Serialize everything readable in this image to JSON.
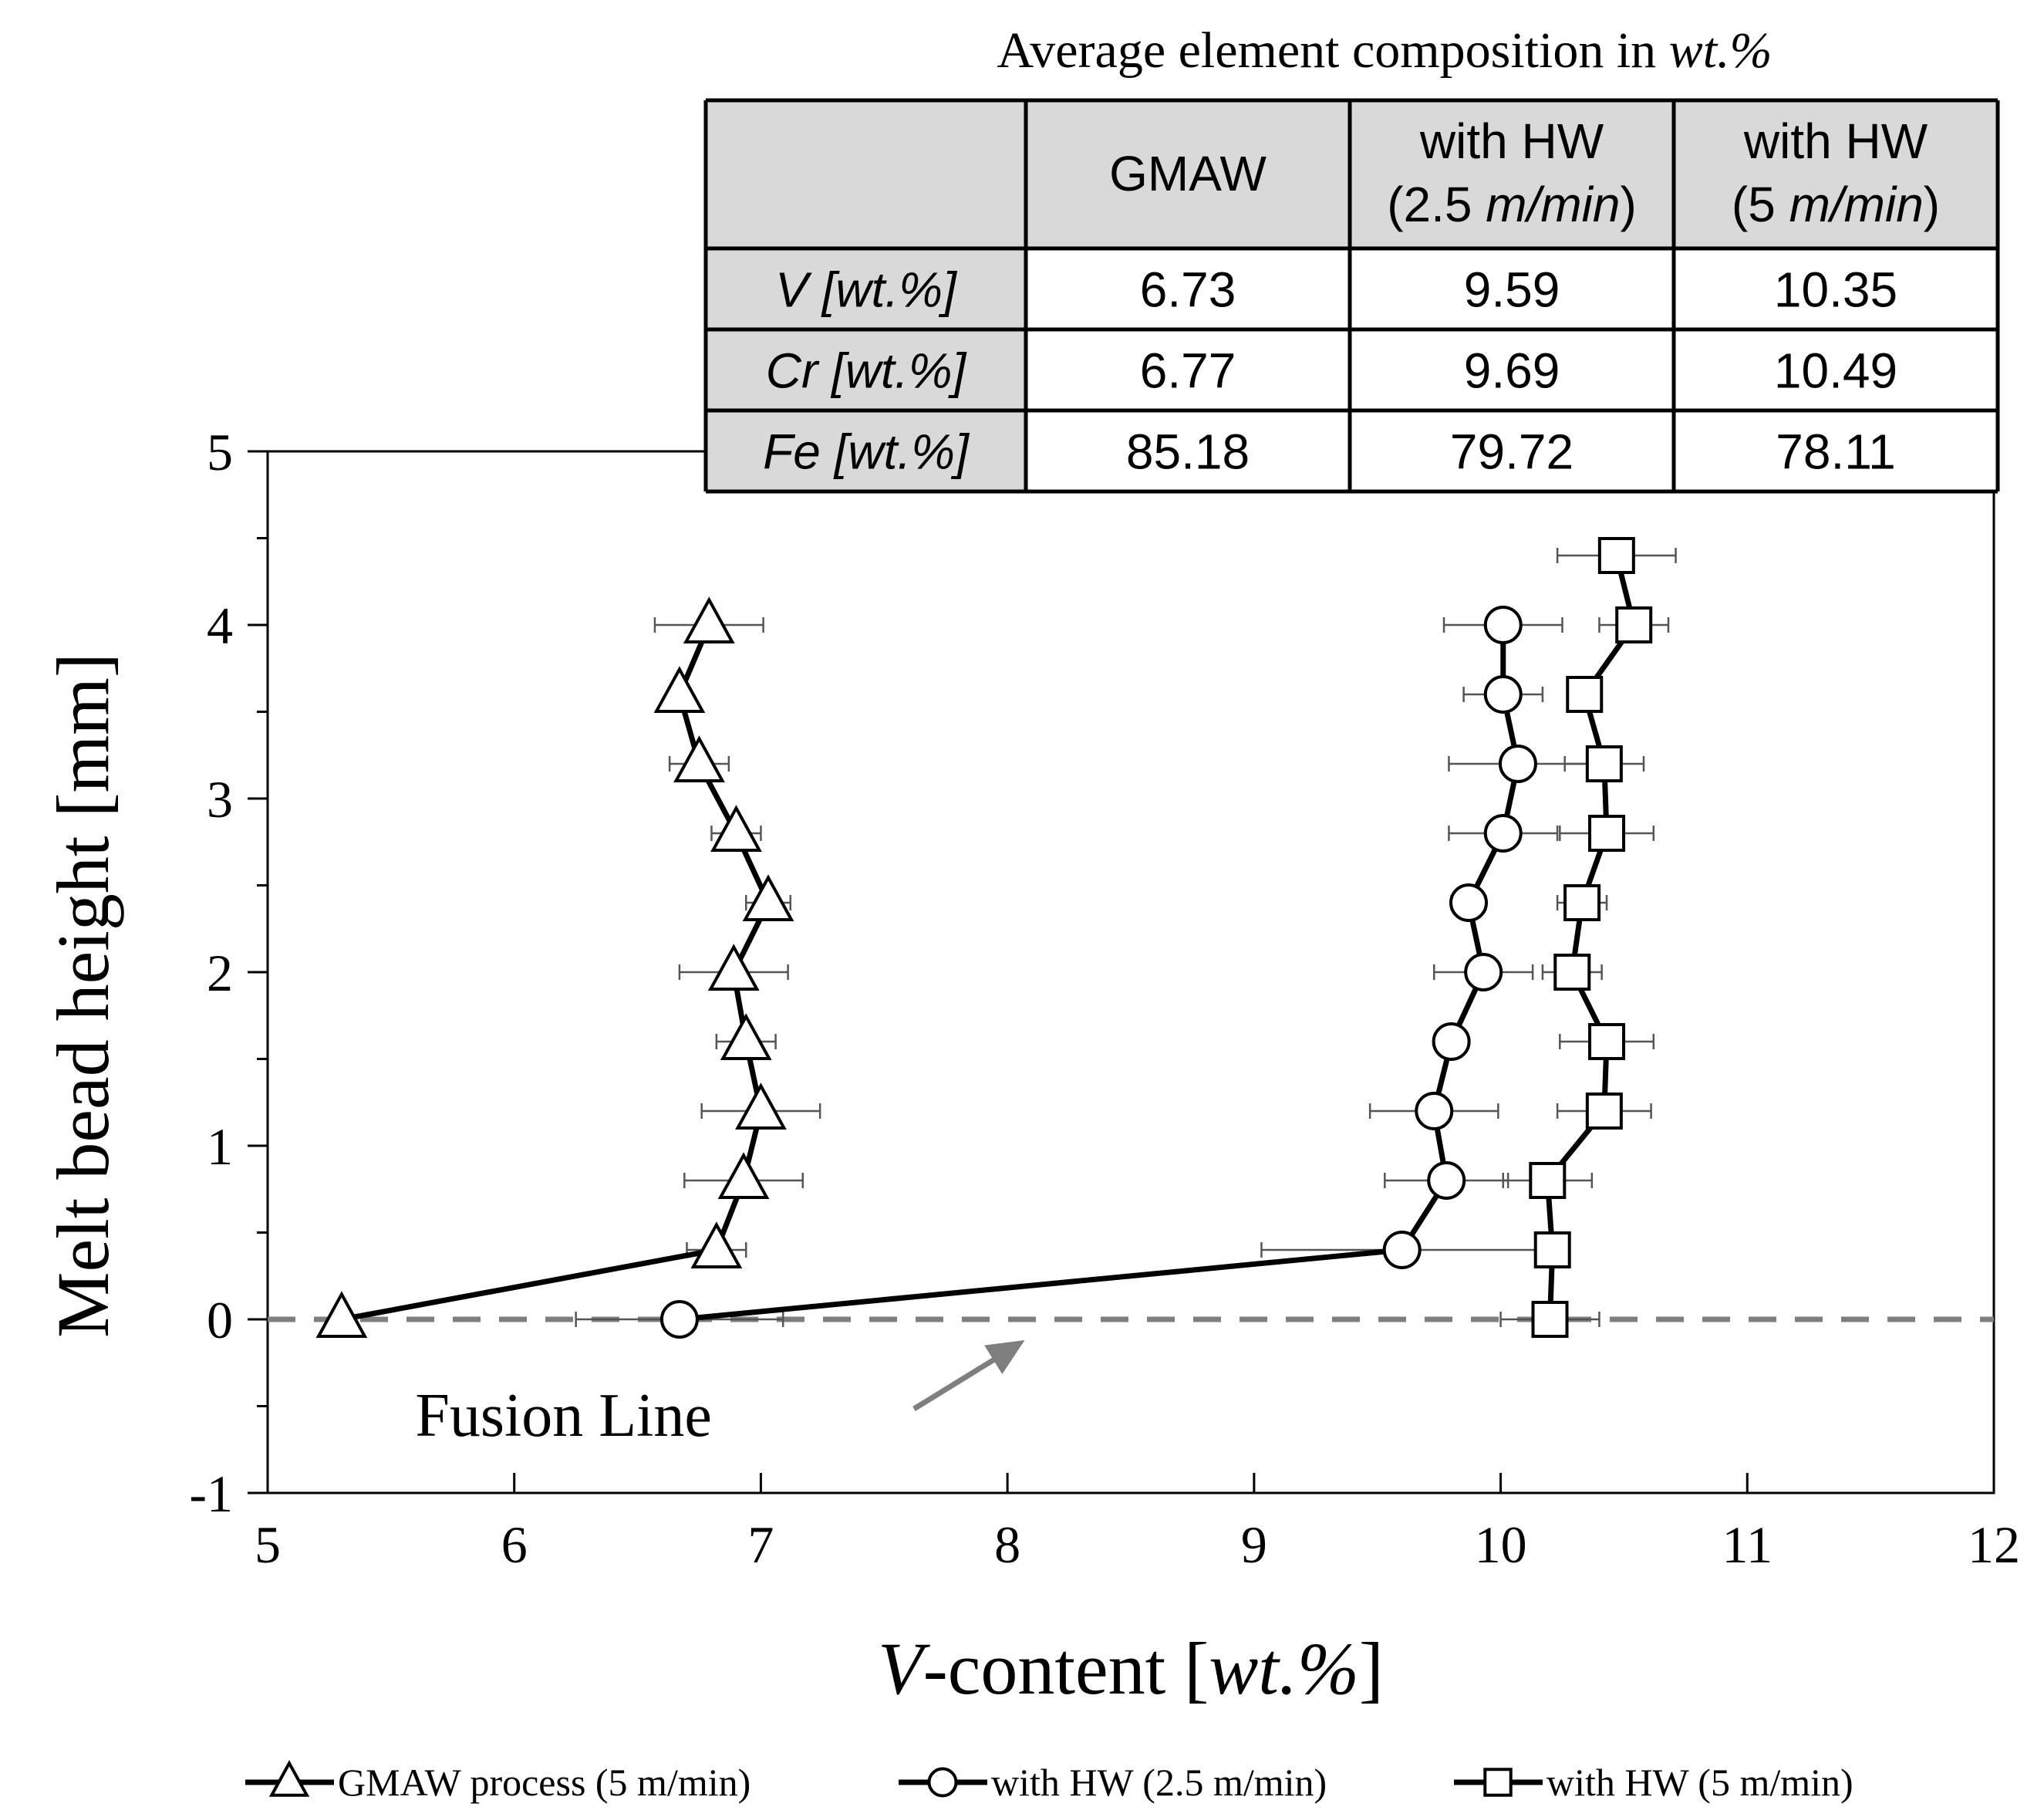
{
  "chart_data": {
    "type": "line",
    "title": "",
    "xlabel": {
      "italic": "V",
      "rest": "-content [",
      "unit_italic": "wt.%",
      "close": "]"
    },
    "ylabel": "Melt bead height [mm]",
    "xlim": [
      5,
      12
    ],
    "ylim": [
      -1,
      5
    ],
    "x_ticks": [
      "5",
      "6",
      "7",
      "8",
      "9",
      "10",
      "11",
      "12"
    ],
    "y_ticks": [
      "-1",
      "0",
      "1",
      "2",
      "3",
      "4",
      "5"
    ],
    "grid": false,
    "legend_position": "bottom",
    "series": [
      {
        "name": "GMAW process (5 m/min)",
        "marker": "triangle",
        "color": "#000000",
        "points": [
          {
            "x": 5.3,
            "y": 0.0,
            "err": 0.0
          },
          {
            "x": 6.82,
            "y": 0.4,
            "err": 0.12
          },
          {
            "x": 6.93,
            "y": 0.8,
            "err": 0.24
          },
          {
            "x": 7.0,
            "y": 1.2,
            "err": 0.24
          },
          {
            "x": 6.94,
            "y": 1.6,
            "err": 0.12
          },
          {
            "x": 6.89,
            "y": 2.0,
            "err": 0.22
          },
          {
            "x": 7.03,
            "y": 2.4,
            "err": 0.09
          },
          {
            "x": 6.9,
            "y": 2.8,
            "err": 0.1
          },
          {
            "x": 6.75,
            "y": 3.2,
            "err": 0.12
          },
          {
            "x": 6.67,
            "y": 3.6,
            "err": 0.0
          },
          {
            "x": 6.79,
            "y": 4.0,
            "err": 0.22
          }
        ]
      },
      {
        "name": "with HW (2.5 m/min)",
        "marker": "circle",
        "color": "#000000",
        "points": [
          {
            "x": 6.67,
            "y": 0.0,
            "err": 0.42
          },
          {
            "x": 9.6,
            "y": 0.4,
            "err": 0.57
          },
          {
            "x": 9.78,
            "y": 0.8,
            "err": 0.25
          },
          {
            "x": 9.73,
            "y": 1.2,
            "err": 0.26
          },
          {
            "x": 9.8,
            "y": 1.6,
            "err": 0.06
          },
          {
            "x": 9.93,
            "y": 2.0,
            "err": 0.2
          },
          {
            "x": 9.87,
            "y": 2.4,
            "err": 0.07
          },
          {
            "x": 10.01,
            "y": 2.8,
            "err": 0.22
          },
          {
            "x": 10.07,
            "y": 3.2,
            "err": 0.28
          },
          {
            "x": 10.01,
            "y": 3.6,
            "err": 0.16
          },
          {
            "x": 10.01,
            "y": 4.0,
            "err": 0.24
          }
        ]
      },
      {
        "name": "with HW (5 m/min)",
        "marker": "square",
        "color": "#000000",
        "points": [
          {
            "x": 10.2,
            "y": 0.0,
            "err": 0.2
          },
          {
            "x": 10.21,
            "y": 0.4,
            "err": 0.05
          },
          {
            "x": 10.19,
            "y": 0.8,
            "err": 0.18
          },
          {
            "x": 10.42,
            "y": 1.2,
            "err": 0.19
          },
          {
            "x": 10.43,
            "y": 1.6,
            "err": 0.19
          },
          {
            "x": 10.29,
            "y": 2.0,
            "err": 0.12
          },
          {
            "x": 10.33,
            "y": 2.4,
            "err": 0.1
          },
          {
            "x": 10.43,
            "y": 2.8,
            "err": 0.19
          },
          {
            "x": 10.42,
            "y": 3.2,
            "err": 0.16
          },
          {
            "x": 10.34,
            "y": 3.6,
            "err": 0.0
          },
          {
            "x": 10.54,
            "y": 4.0,
            "err": 0.14
          },
          {
            "x": 10.47,
            "y": 4.4,
            "err": 0.24
          }
        ]
      }
    ],
    "reference_line": {
      "y": 0,
      "style": "dashed",
      "color": "#7f7f7f"
    },
    "annotations": [
      {
        "text": "Fusion Line",
        "x": 6.2,
        "y": -0.56,
        "arrow_to": [
          8.07,
          -0.12
        ]
      }
    ]
  },
  "table": {
    "title_plain": "Average element composition in ",
    "title_italic": "wt.%",
    "headers": [
      {
        "lines": [
          {
            "plain": "",
            "italic": ""
          }
        ]
      },
      {
        "lines": [
          {
            "plain": "GMAW",
            "italic": ""
          }
        ]
      },
      {
        "lines": [
          {
            "plain": "with HW",
            "italic": ""
          },
          {
            "plain": "(2.5 ",
            "italic": "m/min",
            "close": ")"
          }
        ]
      },
      {
        "lines": [
          {
            "plain": "with HW",
            "italic": ""
          },
          {
            "plain": "(5 ",
            "italic": "m/min",
            "close": ")"
          }
        ]
      }
    ],
    "rows": [
      {
        "label": "V [wt.%]",
        "values": [
          "6.73",
          "9.59",
          "10.35"
        ]
      },
      {
        "label": "Cr [wt.%]",
        "values": [
          "6.77",
          "9.69",
          "10.49"
        ]
      },
      {
        "label": "Fe [wt.%]",
        "values": [
          "85.18",
          "79.72",
          "78.11"
        ]
      }
    ]
  }
}
